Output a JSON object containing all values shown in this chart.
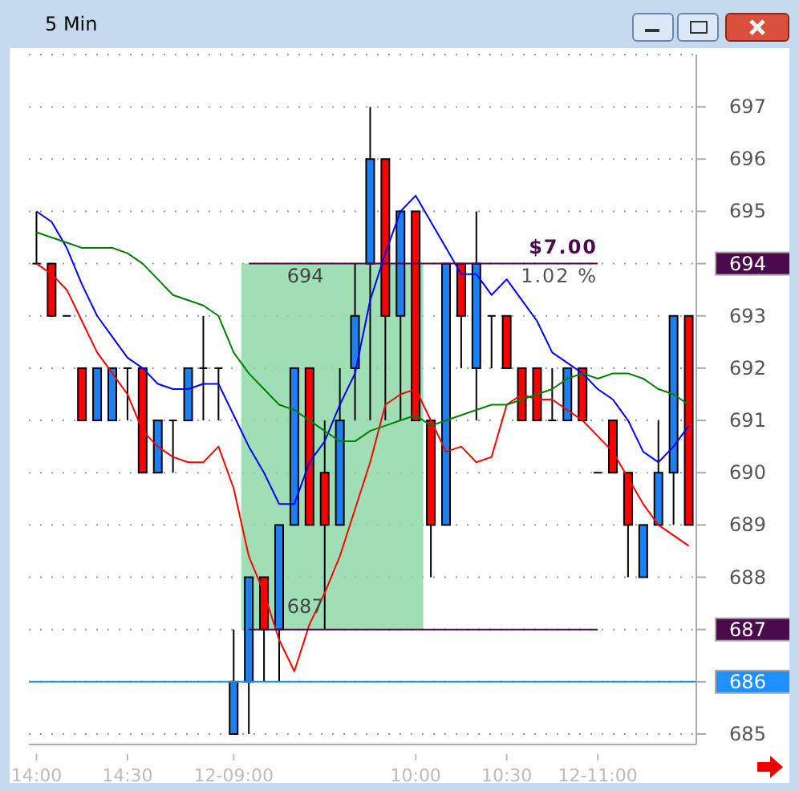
{
  "chart_data": {
    "type": "candlestick",
    "title": "5 Min",
    "categories": [
      "14:00",
      null,
      null,
      null,
      null,
      null,
      "14:30",
      null,
      null,
      null,
      null,
      null,
      null,
      "12-09:00",
      null,
      null,
      null,
      null,
      null,
      null,
      null,
      null,
      null,
      null,
      null,
      "10:00",
      null,
      null,
      null,
      null,
      null,
      "10:30",
      null,
      null,
      null,
      null,
      null,
      "12-11:00",
      null,
      null,
      null,
      null,
      null,
      null
    ],
    "ohlc": [
      [
        694,
        695,
        694,
        694
      ],
      [
        694,
        694,
        693,
        693
      ],
      [
        693,
        693,
        693,
        693
      ],
      [
        692,
        692,
        691,
        691
      ],
      [
        691,
        692,
        691,
        692
      ],
      [
        691,
        692,
        691,
        692
      ],
      [
        692,
        692,
        691,
        692
      ],
      [
        692,
        692,
        690,
        690
      ],
      [
        690,
        691,
        690,
        691
      ],
      [
        691,
        691,
        690,
        691
      ],
      [
        691,
        692,
        691,
        692
      ],
      [
        692,
        693,
        691,
        692
      ],
      [
        692,
        692,
        691,
        692
      ],
      [
        685,
        687,
        685,
        686
      ],
      [
        686,
        688,
        685,
        688
      ],
      [
        688,
        688,
        686,
        687
      ],
      [
        687,
        689,
        686,
        689
      ],
      [
        689,
        692,
        689,
        692
      ],
      [
        692,
        692,
        689,
        689
      ],
      [
        690,
        691,
        687,
        689
      ],
      [
        689,
        692,
        689,
        691
      ],
      [
        692,
        694,
        691,
        693
      ],
      [
        694,
        697,
        691,
        696
      ],
      [
        696,
        696,
        691,
        693
      ],
      [
        693,
        695,
        691,
        695
      ],
      [
        695,
        695,
        691,
        691
      ],
      [
        691,
        691,
        688,
        689
      ],
      [
        689,
        694,
        689,
        694
      ],
      [
        694,
        694,
        692,
        693
      ],
      [
        692,
        695,
        691,
        694
      ],
      [
        693,
        693,
        692,
        693
      ],
      [
        693,
        693,
        692,
        692
      ],
      [
        692,
        692,
        691,
        691
      ],
      [
        692,
        692,
        691,
        691
      ],
      [
        691,
        692,
        691,
        691
      ],
      [
        691,
        692,
        691,
        692
      ],
      [
        692,
        692,
        691,
        691
      ],
      [
        690,
        690,
        690,
        690
      ],
      [
        691,
        691,
        690,
        690
      ],
      [
        690,
        690,
        688,
        689
      ],
      [
        688,
        689,
        688,
        689
      ],
      [
        689,
        691,
        689,
        690
      ],
      [
        690,
        693,
        689,
        693
      ],
      [
        693,
        693,
        689,
        689
      ]
    ],
    "series": [
      {
        "type": "line",
        "color": "#0000ff",
        "values": [
          695.0,
          694.8,
          694.3,
          693.6,
          693.0,
          692.6,
          692.2,
          692.0,
          691.7,
          691.6,
          691.6,
          691.7,
          691.7,
          691.1,
          690.5,
          690.0,
          689.4,
          689.4,
          690.2,
          690.6,
          691.3,
          691.9,
          693.3,
          694.2,
          695.0,
          695.3,
          694.8,
          694.3,
          693.8,
          693.8,
          693.4,
          693.7,
          693.3,
          692.9,
          692.3,
          692.1,
          691.9,
          691.6,
          691.4,
          691.0,
          690.4,
          690.2,
          690.5,
          690.9
        ]
      },
      {
        "type": "line",
        "color": "#ff0000",
        "values": [
          694.0,
          693.8,
          693.5,
          692.9,
          692.3,
          691.9,
          691.5,
          690.8,
          690.5,
          690.3,
          690.2,
          690.2,
          690.5,
          689.7,
          688.4,
          687.7,
          686.8,
          686.2,
          687.1,
          687.7,
          688.4,
          689.3,
          690.2,
          691.3,
          691.5,
          691.6,
          691.0,
          690.4,
          690.5,
          690.2,
          690.3,
          691.3,
          691.5,
          691.4,
          691.4,
          691.2,
          691.0,
          690.7,
          690.4,
          689.9,
          689.4,
          689.0,
          688.8,
          688.6
        ]
      },
      {
        "type": "line",
        "color": "#008000",
        "values": [
          694.6,
          694.5,
          694.4,
          694.3,
          694.3,
          694.3,
          694.2,
          694.0,
          693.7,
          693.4,
          693.3,
          693.2,
          693.0,
          692.3,
          691.9,
          691.6,
          691.3,
          691.2,
          691.0,
          690.8,
          690.6,
          690.6,
          690.8,
          690.9,
          691.0,
          691.1,
          690.9,
          691.0,
          691.1,
          691.2,
          691.3,
          691.3,
          691.4,
          691.5,
          691.6,
          691.8,
          691.9,
          691.8,
          691.9,
          691.9,
          691.8,
          691.6,
          691.5,
          691.3
        ]
      }
    ],
    "ylim": [
      684.8,
      698
    ],
    "yticks": [
      685,
      686,
      687,
      688,
      689,
      690,
      691,
      692,
      693,
      694,
      695,
      696,
      697
    ],
    "grid": "y",
    "legend": false,
    "ref_lines": [
      {
        "axis": "y",
        "value": 694,
        "color": "#4b0a4b"
      },
      {
        "axis": "y",
        "value": 687,
        "color": "#4b0a4b"
      },
      {
        "axis": "y",
        "value": 686,
        "color": "#1e90ff"
      }
    ],
    "bands": [
      {
        "axis": "y",
        "from": 687,
        "to": 694,
        "color": "#8fd8a8"
      }
    ],
    "annotations": [
      {
        "text": "694",
        "y": 694
      },
      {
        "text": "687",
        "y": 687
      },
      "$7.00",
      "1.02 %"
    ]
  }
}
